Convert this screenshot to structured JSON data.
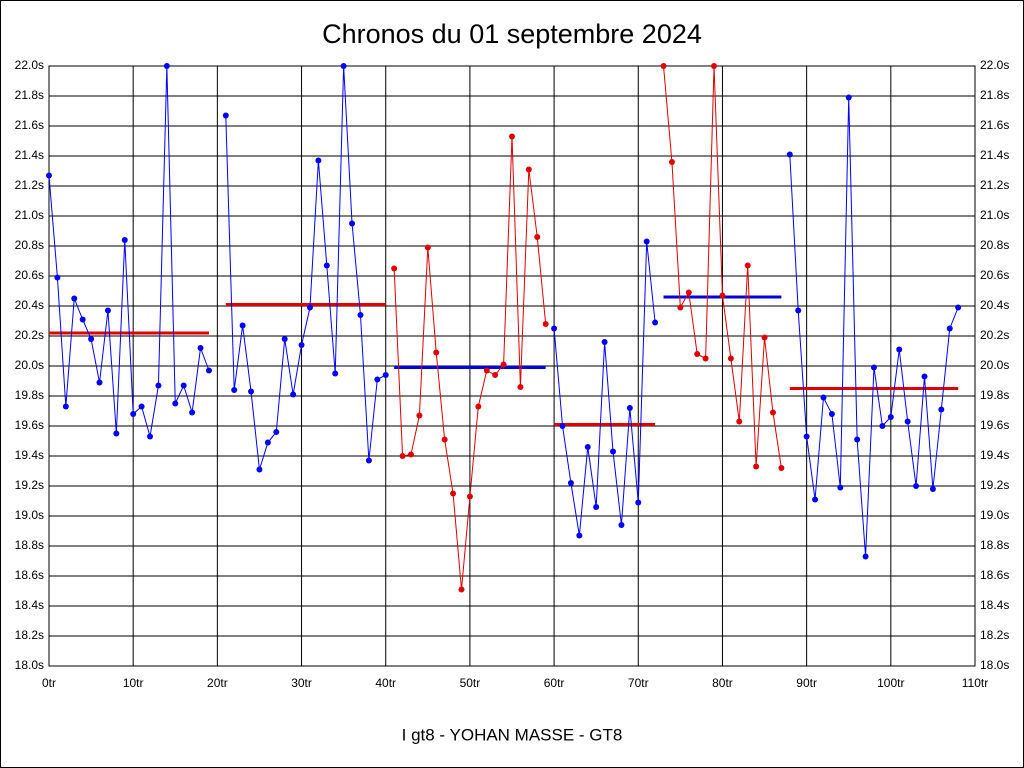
{
  "chart_data": {
    "type": "line",
    "title": "Chronos du 01 septembre 2024",
    "xlabel": "I gt8 - YOHAN MASSE - GT8",
    "xlim": [
      0,
      110
    ],
    "ylim": [
      18,
      22
    ],
    "grid": true,
    "xticks": [
      {
        "value": 0,
        "label": "0tr"
      },
      {
        "value": 10,
        "label": "10tr"
      },
      {
        "value": 20,
        "label": "20tr"
      },
      {
        "value": 30,
        "label": "30tr"
      },
      {
        "value": 40,
        "label": "40tr"
      },
      {
        "value": 50,
        "label": "50tr"
      },
      {
        "value": 60,
        "label": "60tr"
      },
      {
        "value": 70,
        "label": "70tr"
      },
      {
        "value": 80,
        "label": "80tr"
      },
      {
        "value": 90,
        "label": "90tr"
      },
      {
        "value": 100,
        "label": "100tr"
      },
      {
        "value": 110,
        "label": "110tr"
      }
    ],
    "yticks": [
      {
        "value": 18,
        "label": "18.0s"
      },
      {
        "value": 18.2,
        "label": "18.2s"
      },
      {
        "value": 18.4,
        "label": "18.4s"
      },
      {
        "value": 18.6,
        "label": "18.6s"
      },
      {
        "value": 18.8,
        "label": "18.8s"
      },
      {
        "value": 19,
        "label": "19.0s"
      },
      {
        "value": 19.2,
        "label": "19.2s"
      },
      {
        "value": 19.4,
        "label": "19.4s"
      },
      {
        "value": 19.6,
        "label": "19.6s"
      },
      {
        "value": 19.8,
        "label": "19.8s"
      },
      {
        "value": 20,
        "label": "20.0s"
      },
      {
        "value": 20.2,
        "label": "20.2s"
      },
      {
        "value": 20.4,
        "label": "20.4s"
      },
      {
        "value": 20.6,
        "label": "20.6s"
      },
      {
        "value": 20.8,
        "label": "20.8s"
      },
      {
        "value": 21,
        "label": "21.0s"
      },
      {
        "value": 21.2,
        "label": "21.2s"
      },
      {
        "value": 21.4,
        "label": "21.4s"
      },
      {
        "value": 21.6,
        "label": "21.6s"
      },
      {
        "value": 21.8,
        "label": "21.8s"
      },
      {
        "value": 22,
        "label": "22.0s"
      }
    ],
    "series": [
      {
        "color": "#0000ff",
        "mean": 20.22,
        "mean_color": "#e00000",
        "x": [
          0,
          1,
          2,
          3,
          4,
          5,
          6,
          7,
          8,
          9,
          10,
          11,
          12,
          13,
          14,
          15,
          16,
          17,
          18,
          19
        ],
        "values": [
          21.27,
          20.59,
          19.73,
          20.45,
          20.31,
          20.18,
          19.89,
          20.37,
          19.55,
          20.84,
          19.68,
          19.73,
          19.53,
          19.87,
          22.0,
          19.75,
          19.87,
          19.69,
          20.12,
          19.97
        ]
      },
      {
        "color": "#0000ff",
        "mean": 20.41,
        "mean_color": "#e00000",
        "x": [
          21,
          22,
          23,
          24,
          25,
          26,
          27,
          28,
          29,
          30,
          31,
          32,
          33,
          34,
          35,
          36,
          37,
          38,
          39,
          40
        ],
        "values": [
          21.67,
          19.84,
          20.27,
          19.83,
          19.31,
          19.49,
          19.56,
          20.18,
          19.81,
          20.14,
          20.39,
          21.37,
          20.67,
          19.95,
          22.0,
          20.95,
          20.34,
          19.37,
          19.91,
          19.94
        ]
      },
      {
        "color": "#e00000",
        "mean": 19.99,
        "mean_color": "#0000e0",
        "x": [
          41,
          42,
          43,
          44,
          45,
          46,
          47,
          48,
          49,
          50,
          51,
          52,
          53,
          54,
          55,
          56,
          57,
          58,
          59
        ],
        "values": [
          20.65,
          19.4,
          19.41,
          19.67,
          20.79,
          20.09,
          19.51,
          19.15,
          18.51,
          19.13,
          19.73,
          19.97,
          19.94,
          20.01,
          21.53,
          19.86,
          21.31,
          20.86,
          20.28
        ]
      },
      {
        "color": "#0000ff",
        "mean": 19.61,
        "mean_color": "#e00000",
        "x": [
          60,
          61,
          62,
          63,
          64,
          65,
          66,
          67,
          68,
          69,
          70,
          71,
          72
        ],
        "values": [
          20.25,
          19.6,
          19.22,
          18.87,
          19.46,
          19.06,
          20.16,
          19.43,
          18.94,
          19.72,
          19.09,
          20.83,
          20.29
        ]
      },
      {
        "color": "#e00000",
        "mean": 20.46,
        "mean_color": "#0000e0",
        "x": [
          73,
          74,
          75,
          76,
          77,
          78,
          79,
          80,
          81,
          82,
          83,
          84,
          85,
          86,
          87
        ],
        "values": [
          22.0,
          21.36,
          20.39,
          20.49,
          20.08,
          20.05,
          22.0,
          20.47,
          20.05,
          19.63,
          20.67,
          19.33,
          20.19,
          19.69,
          19.32
        ]
      },
      {
        "color": "#0000ff",
        "mean": 19.85,
        "mean_color": "#e00000",
        "x": [
          88,
          89,
          90,
          91,
          92,
          93,
          94,
          95,
          96,
          97,
          98,
          99,
          100,
          101,
          102,
          103,
          104,
          105,
          106,
          107,
          108
        ],
        "values": [
          21.41,
          20.37,
          19.53,
          19.11,
          19.79,
          19.68,
          19.19,
          21.79,
          19.51,
          18.73,
          19.99,
          19.6,
          19.66,
          20.11,
          19.63,
          19.2,
          19.93,
          19.18,
          19.71,
          20.25,
          20.39
        ]
      }
    ]
  }
}
